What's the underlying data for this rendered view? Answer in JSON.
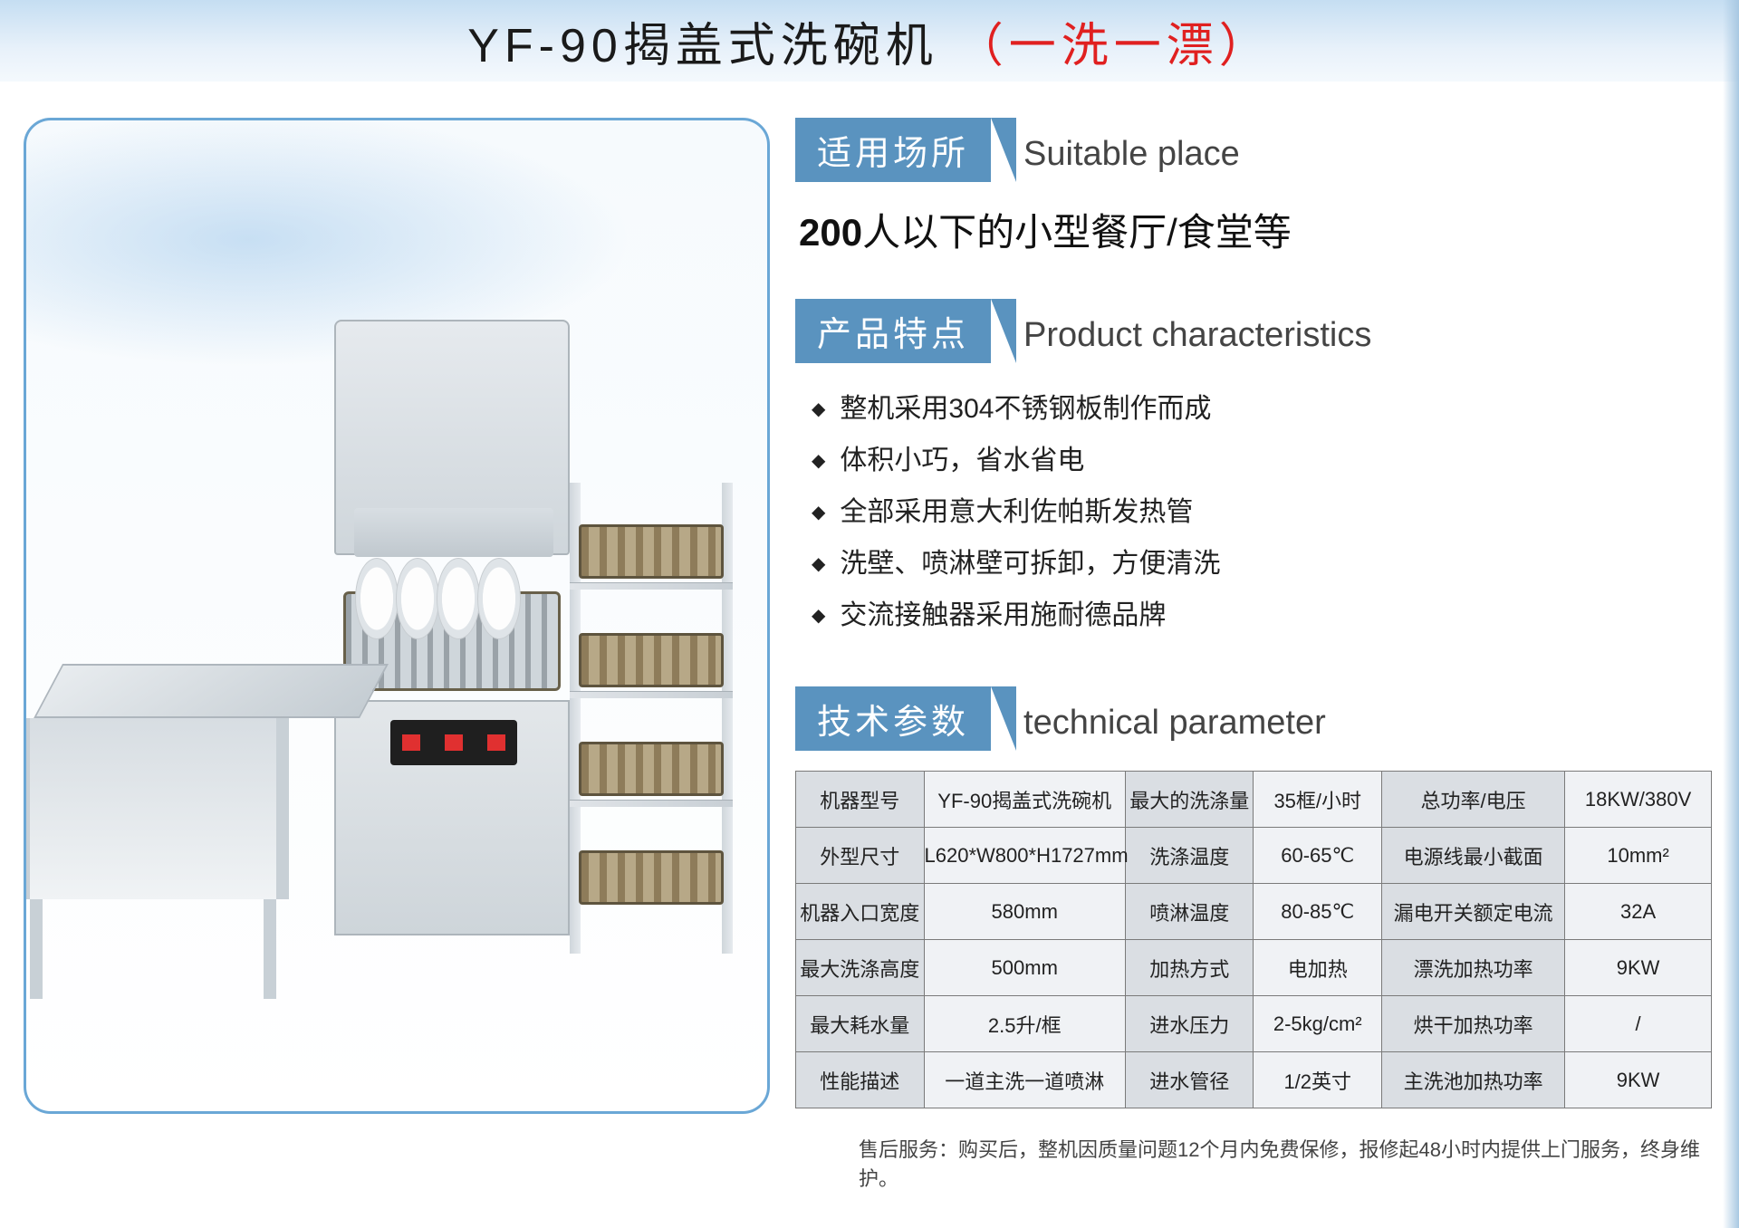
{
  "colors": {
    "title_band_top": "#c5def2",
    "title_band_bottom": "#f4f9fd",
    "title_text": "#1a1a1a",
    "title_accent": "#e02020",
    "badge_bg": "#5a93bf",
    "badge_text": "#ffffff",
    "frame_border": "#6aa7d6",
    "table_border": "#7a7a7a",
    "table_cell_bg": "#f0f2f5",
    "table_label_bg": "#dadee3",
    "body_text": "#222222"
  },
  "title": {
    "main": "YF-90揭盖式洗碗机",
    "sub": "（一洗一漂）"
  },
  "sections": {
    "suitable": {
      "badge": "适用场所",
      "en": "Suitable place"
    },
    "features": {
      "badge": "产品特点",
      "en": "Product characteristics"
    },
    "params": {
      "badge": "技术参数",
      "en": "technical parameter"
    }
  },
  "suitable_text_strong": "200",
  "suitable_text_rest": "人以下的小型餐厅/食堂等",
  "feature_items": [
    "整机采用304不锈钢板制作而成",
    "体积小巧，省水省电",
    "全部采用意大利佐帕斯发热管",
    "洗壁、喷淋壁可拆卸，方便清洗",
    "交流接触器采用施耐德品牌"
  ],
  "spec_table": {
    "rows": [
      {
        "a": "机器型号",
        "b": "YF-90揭盖式洗碗机",
        "c": "最大的洗涤量",
        "d": "35框/小时",
        "e": "总功率/电压",
        "f": "18KW/380V"
      },
      {
        "a": "外型尺寸",
        "b": "L620*W800*H1727mm",
        "c": "洗涤温度",
        "d": "60-65℃",
        "e": "电源线最小截面",
        "f": "10mm²"
      },
      {
        "a": "机器入口宽度",
        "b": "580mm",
        "c": "喷淋温度",
        "d": "80-85℃",
        "e": "漏电开关额定电流",
        "f": "32A"
      },
      {
        "a": "最大洗涤高度",
        "b": "500mm",
        "c": "加热方式",
        "d": "电加热",
        "e": "漂洗加热功率",
        "f": "9KW"
      },
      {
        "a": "最大耗水量",
        "b": "2.5升/框",
        "c": "进水压力",
        "d": "2-5kg/cm²",
        "e": "烘干加热功率",
        "f": "/"
      },
      {
        "a": "性能描述",
        "b": "一道主洗一道喷淋",
        "c": "进水管径",
        "d": "1/2英寸",
        "e": "主洗池加热功率",
        "f": "9KW"
      }
    ]
  },
  "footer": "售后服务：购买后，整机因质量问题12个月内免费保修，报修起48小时内提供上门服务，终身维护。"
}
